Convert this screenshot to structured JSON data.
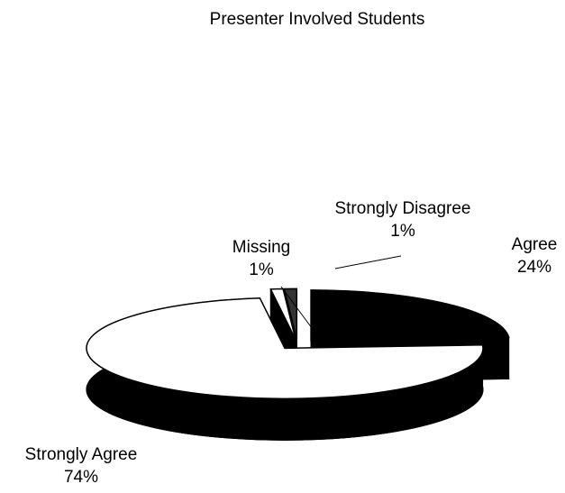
{
  "chart_data": {
    "type": "pie",
    "title": "Presenter Involved Students",
    "categories": [
      "Agree",
      "Strongly Agree",
      "Missing",
      "Strongly Disagree"
    ],
    "values": [
      24,
      74,
      1,
      1
    ],
    "value_labels": [
      "24%",
      "74%",
      "1%",
      "1%"
    ],
    "colors": [
      "#000000",
      "#ffffff",
      "#ffffff",
      "#333333"
    ]
  }
}
